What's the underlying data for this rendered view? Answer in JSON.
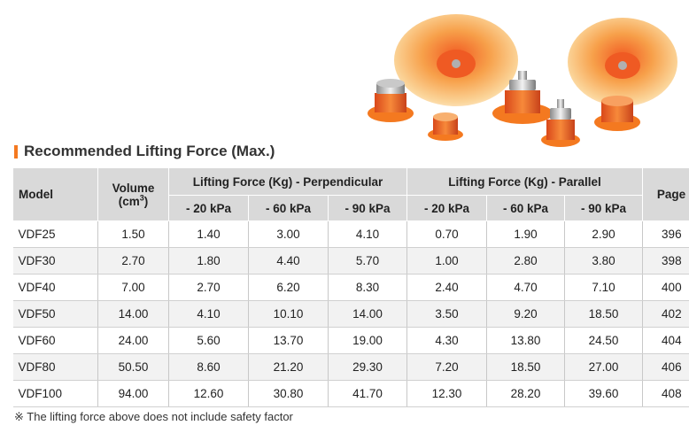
{
  "title": "Recommended Lifting Force (Max.)",
  "headers": {
    "model": "Model",
    "volume": "Volume",
    "volume_unit_open": "(cm",
    "volume_unit_sup": "3",
    "volume_unit_close": ")",
    "perpendicular": "Lifting Force (Kg) - Perpendicular",
    "parallel": "Lifting Force (Kg) - Parallel",
    "page": "Page",
    "pressures": [
      "- 20 kPa",
      "- 60 kPa",
      "- 90 kPa"
    ]
  },
  "rows": [
    [
      "VDF25",
      "1.50",
      "1.40",
      "3.00",
      "4.10",
      "0.70",
      "1.90",
      "2.90",
      "396"
    ],
    [
      "VDF30",
      "2.70",
      "1.80",
      "4.40",
      "5.70",
      "1.00",
      "2.80",
      "3.80",
      "398"
    ],
    [
      "VDF40",
      "7.00",
      "2.70",
      "6.20",
      "8.30",
      "2.40",
      "4.70",
      "7.10",
      "400"
    ],
    [
      "VDF50",
      "14.00",
      "4.10",
      "10.10",
      "14.00",
      "3.50",
      "9.20",
      "18.50",
      "402"
    ],
    [
      "VDF60",
      "24.00",
      "5.60",
      "13.70",
      "19.00",
      "4.30",
      "13.80",
      "24.50",
      "404"
    ],
    [
      "VDF80",
      "50.50",
      "8.60",
      "21.20",
      "29.30",
      "7.20",
      "18.50",
      "27.00",
      "406"
    ],
    [
      "VDF100",
      "94.00",
      "12.60",
      "30.80",
      "41.70",
      "12.30",
      "28.20",
      "39.60",
      "408"
    ]
  ],
  "footnote": "※ The lifting force above does not include safety factor",
  "colors": {
    "accent": "#f47920",
    "header_bg": "#d9d9d9",
    "row_shade": "#f2f2f2",
    "cup_orange": "#f58a2a"
  }
}
